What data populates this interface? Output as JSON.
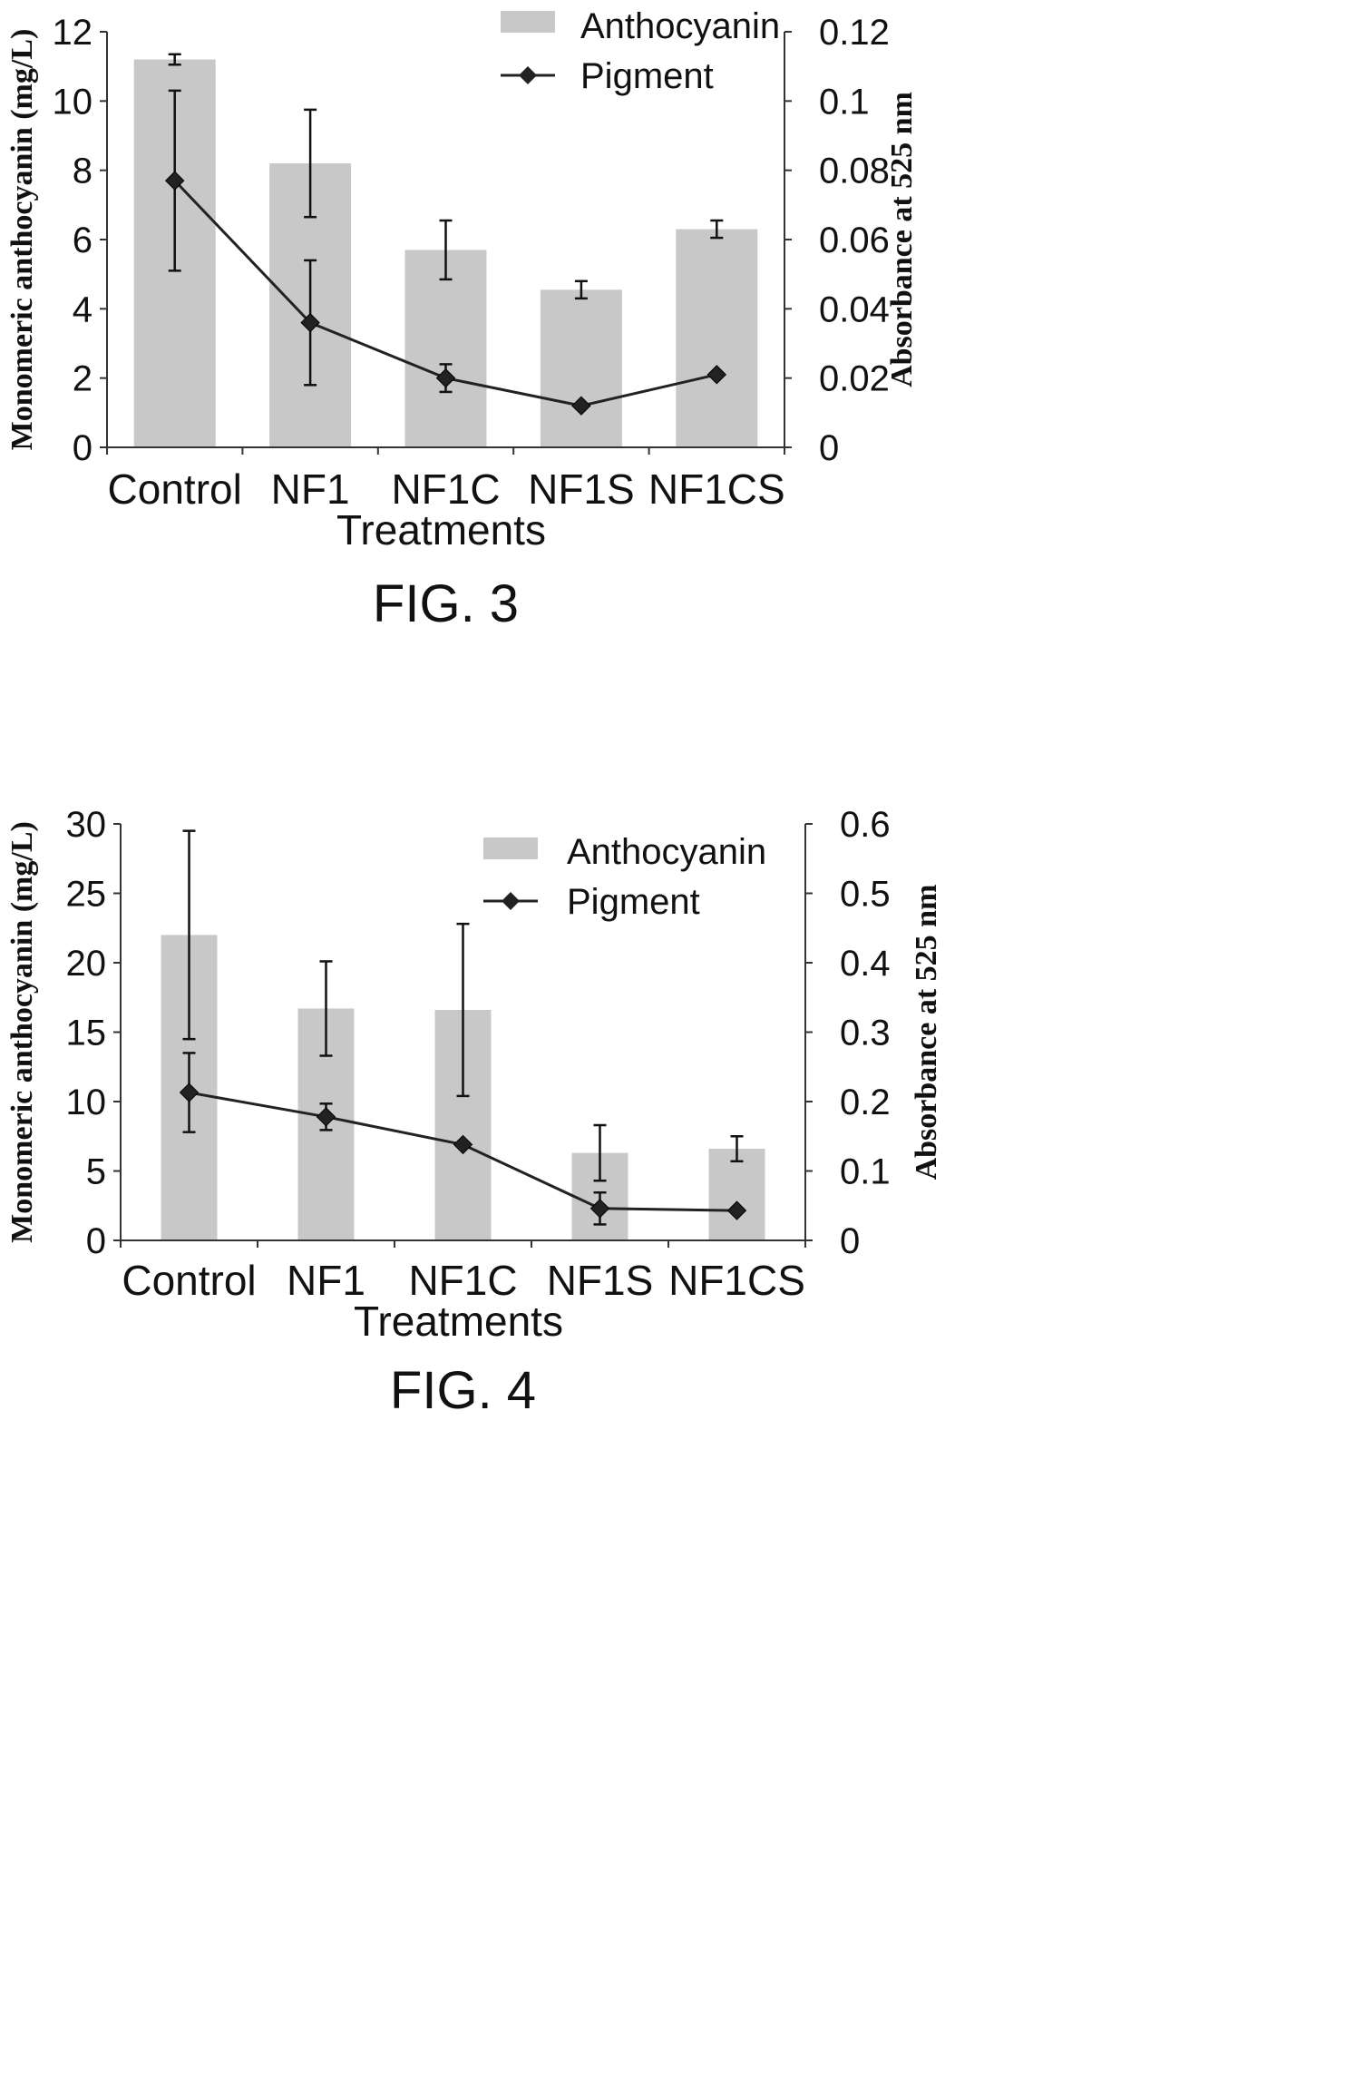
{
  "colors": {
    "bar": "#c8c8c8",
    "line": "#222222",
    "axis": "#333333"
  },
  "chart_data": [
    {
      "type": "bar",
      "figure_label": "FIG. 3",
      "categories": [
        "Control",
        "NF1",
        "NF1C",
        "NF1S",
        "NF1CS"
      ],
      "xlabel": "Treatments",
      "ylabel": "Monomeric anthocyanin (mg/L)",
      "y2label": "Absorbance at 525 nm",
      "ylim": [
        0,
        12
      ],
      "y2lim": [
        0,
        0.12
      ],
      "yticks": [
        "0",
        "2",
        "4",
        "6",
        "8",
        "10",
        "12"
      ],
      "y2ticks": [
        "0",
        "0.02",
        "0.04",
        "0.06",
        "0.08",
        "0.1",
        "0.12"
      ],
      "legend_position": "top-right",
      "series": [
        {
          "name": "Anthocyanin",
          "kind": "bar",
          "axis": "left",
          "values": [
            11.2,
            8.2,
            5.7,
            4.55,
            6.3
          ],
          "error": [
            0.15,
            1.55,
            0.85,
            0.25,
            0.25
          ]
        },
        {
          "name": "Pigment",
          "kind": "line",
          "axis": "right",
          "values": [
            0.077,
            0.036,
            0.02,
            0.012,
            0.021
          ],
          "error": [
            0.026,
            0.018,
            0.004,
            0.0,
            0.0
          ]
        }
      ]
    },
    {
      "type": "bar",
      "figure_label": "FIG. 4",
      "categories": [
        "Control",
        "NF1",
        "NF1C",
        "NF1S",
        "NF1CS"
      ],
      "xlabel": "Treatments",
      "ylabel": "Monomeric anthocyanin (mg/L)",
      "y2label": "Absorbance at 525 nm",
      "ylim": [
        0,
        30
      ],
      "y2lim": [
        0,
        0.6
      ],
      "yticks": [
        "0",
        "5",
        "10",
        "15",
        "20",
        "25",
        "30"
      ],
      "y2ticks": [
        "0",
        "0.1",
        "0.2",
        "0.3",
        "0.4",
        "0.5",
        "0.6"
      ],
      "legend_position": "top-right",
      "series": [
        {
          "name": "Anthocyanin",
          "kind": "bar",
          "axis": "left",
          "values": [
            22.0,
            16.7,
            16.6,
            6.3,
            6.6
          ],
          "error": [
            7.5,
            3.4,
            6.2,
            2.0,
            0.9
          ]
        },
        {
          "name": "Pigment",
          "kind": "line",
          "axis": "right",
          "values": [
            0.213,
            0.178,
            0.138,
            0.046,
            0.043
          ],
          "error": [
            0.057,
            0.019,
            0.0,
            0.023,
            0.0
          ]
        }
      ]
    }
  ]
}
